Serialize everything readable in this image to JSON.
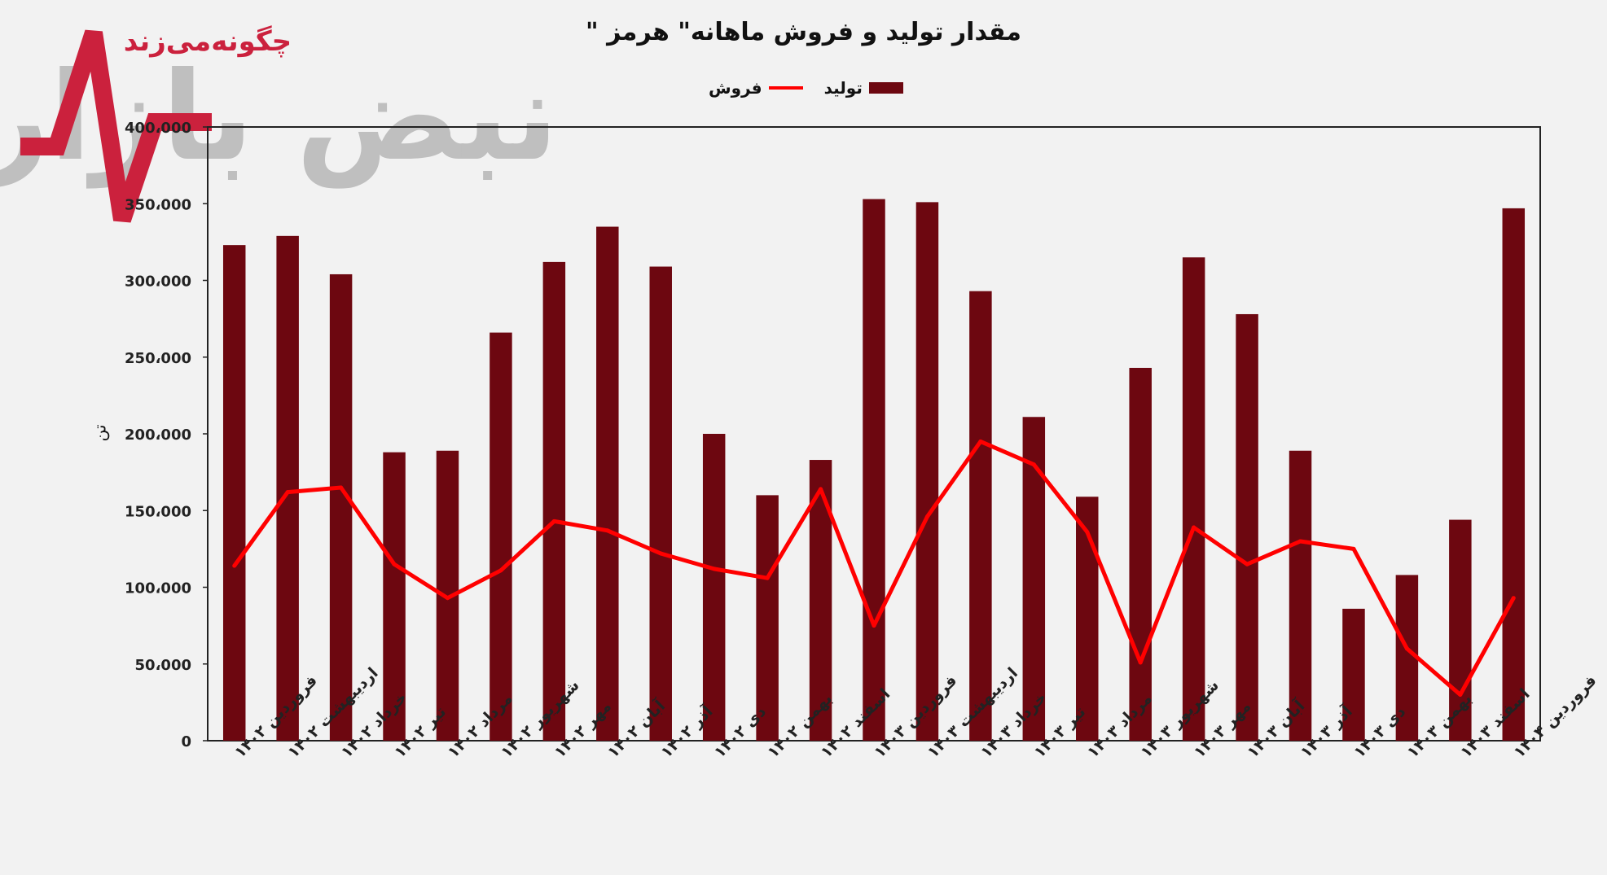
{
  "title": "مقدار تولید و فروش ماهانه\" هرمز \"",
  "watermark": {
    "tagline": "چگونه‌می‌زند",
    "brand": "نبض بازار"
  },
  "colors": {
    "bar": "#6d0710",
    "line": "#ff0000",
    "grid": "#c8c8c8",
    "logo_red": "#c8102e",
    "logo_grey": "#9c9c9c"
  },
  "chart_data": {
    "type": "bar",
    "title": "مقدار تولید و فروش ماهانه\" هرمز \"",
    "xlabel": "",
    "ylabel": "تن",
    "ylim": [
      0,
      400000
    ],
    "yticks": [
      0,
      50000,
      100000,
      150000,
      200000,
      250000,
      300000,
      350000,
      400000
    ],
    "ytick_labels": [
      "0",
      "50،000",
      "100،000",
      "150،000",
      "200،000",
      "250،000",
      "300،000",
      "350،000",
      "400،000"
    ],
    "grid": false,
    "legend_position": "top",
    "categories": [
      "فروردین ۱۴۰۲",
      "اردیبهشت ۱۴۰۲",
      "خرداد ۱۴۰۲",
      "تیر ۱۴۰۲",
      "مرداد ۱۴۰۲",
      "شهریور ۱۴۰۲",
      "مهر ۱۴۰۲",
      "آبان ۱۴۰۲",
      "آذر ۱۴۰۲",
      "دی ۱۴۰۲",
      "بهمن ۱۴۰۲",
      "اسفند ۱۴۰۲",
      "فروردین ۱۴۰۳",
      "اردیبهشت ۱۴۰۳",
      "خرداد ۱۴۰۳",
      "تیر ۱۴۰۳",
      "مرداد ۱۴۰۳",
      "شهریور ۱۴۰۳",
      "مهر ۱۴۰۳",
      "آبان ۱۴۰۳",
      "آذر ۱۴۰۳",
      "دی ۱۴۰۳",
      "بهمن ۱۴۰۳",
      "اسفند ۱۴۰۳",
      "فروردین ۱۴۰۴"
    ],
    "series": [
      {
        "name": "تولید",
        "type": "bar",
        "values": [
          323000,
          329000,
          304000,
          188000,
          189000,
          266000,
          312000,
          335000,
          309000,
          200000,
          160000,
          183000,
          353000,
          351000,
          293000,
          211000,
          159000,
          243000,
          315000,
          278000,
          189000,
          86000,
          108000,
          144000,
          347000
        ]
      },
      {
        "name": "فروش",
        "type": "line",
        "values": [
          114000,
          162000,
          165000,
          115000,
          93000,
          111000,
          143000,
          137000,
          122000,
          112000,
          106000,
          164000,
          75000,
          146000,
          195000,
          180000,
          136000,
          51000,
          139000,
          115000,
          130000,
          125000,
          60000,
          30000,
          93000
        ]
      }
    ]
  }
}
